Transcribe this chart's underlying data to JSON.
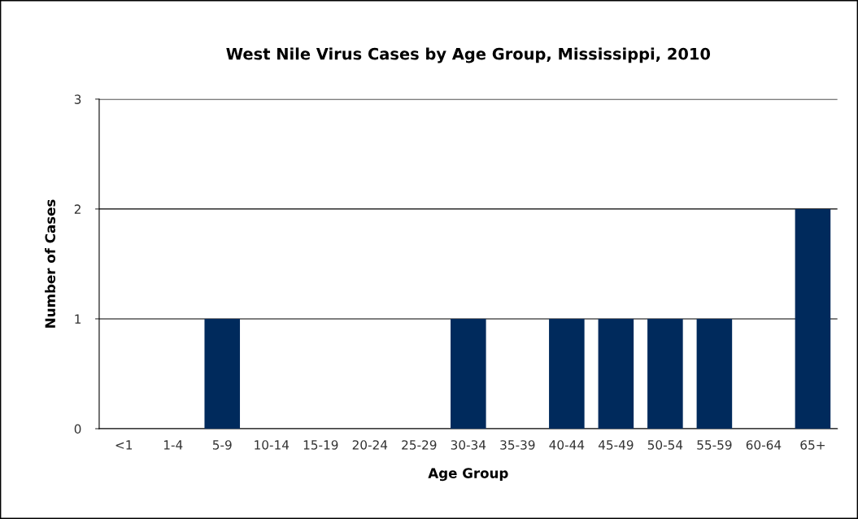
{
  "chart_data": {
    "type": "bar",
    "title": "West Nile Virus Cases by Age Group, Mississippi, 2010",
    "xlabel": "Age Group",
    "ylabel": "Number of Cases",
    "categories": [
      "<1",
      "1-4",
      "5-9",
      "10-14",
      "15-19",
      "20-24",
      "25-29",
      "30-34",
      "35-39",
      "40-44",
      "45-49",
      "50-54",
      "55-59",
      "60-64",
      "65+"
    ],
    "values": [
      0,
      0,
      1,
      0,
      0,
      0,
      0,
      1,
      0,
      1,
      1,
      1,
      1,
      0,
      2
    ],
    "color": "#002a5c",
    "ylim": [
      0,
      3
    ],
    "yticks": [
      0,
      1,
      2,
      3
    ],
    "grid": "y",
    "legend": false
  }
}
